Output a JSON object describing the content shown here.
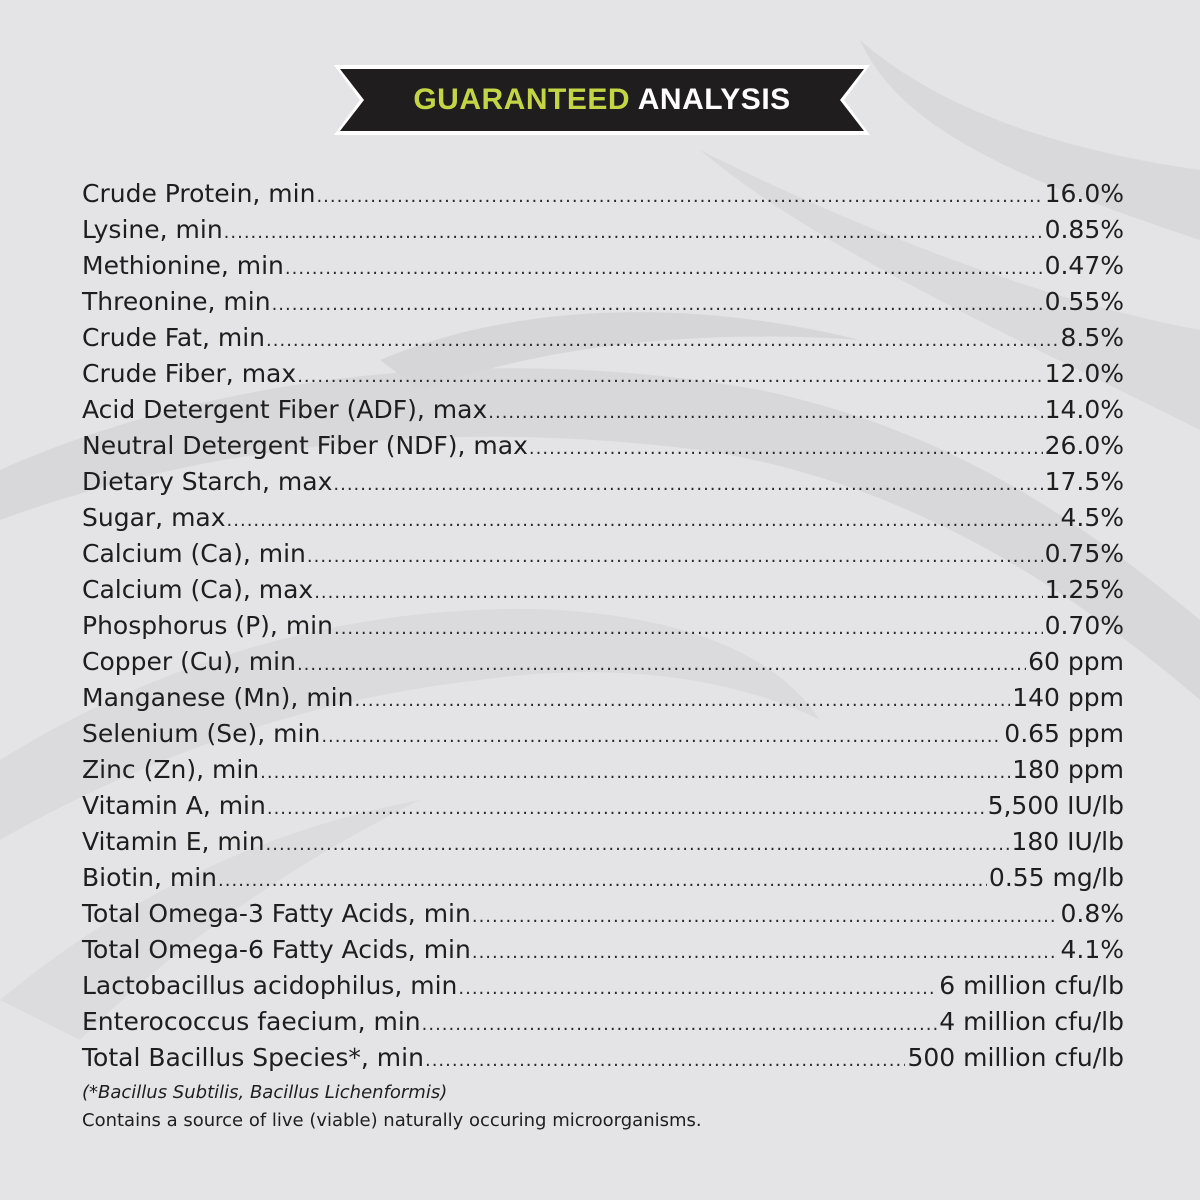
{
  "colors": {
    "background": "#e4e4e6",
    "banner_fill": "#1f1d1e",
    "accent": "#c3d545",
    "text": "#1e1e1e"
  },
  "banner": {
    "accent_word": "GUARANTEED",
    "main_word": "ANALYSIS"
  },
  "analysis": [
    {
      "label": "Crude Protein, min",
      "value": "16.0%"
    },
    {
      "label": "Lysine, min",
      "value": "0.85%"
    },
    {
      "label": "Methionine, min",
      "value": "0.47%"
    },
    {
      "label": "Threonine, min",
      "value": "0.55%"
    },
    {
      "label": "Crude Fat, min",
      "value": "8.5%"
    },
    {
      "label": "Crude Fiber, max",
      "value": "12.0%"
    },
    {
      "label": "Acid Detergent Fiber (ADF), max",
      "value": "14.0%"
    },
    {
      "label": "Neutral Detergent Fiber (NDF), max",
      "value": "26.0%"
    },
    {
      "label": "Dietary Starch, max",
      "value": "17.5%"
    },
    {
      "label": "Sugar, max",
      "value": "4.5%"
    },
    {
      "label": "Calcium (Ca), min",
      "value": "0.75%"
    },
    {
      "label": "Calcium (Ca), max",
      "value": "1.25%"
    },
    {
      "label": "Phosphorus (P), min",
      "value": "0.70%"
    },
    {
      "label": "Copper (Cu), min",
      "value": "60 ppm"
    },
    {
      "label": "Manganese (Mn), min",
      "value": "140 ppm"
    },
    {
      "label": "Selenium (Se), min",
      "value": "0.65 ppm"
    },
    {
      "label": "Zinc (Zn), min",
      "value": "180 ppm"
    },
    {
      "label": "Vitamin A, min",
      "value": "5,500 IU/lb"
    },
    {
      "label": "Vitamin E, min",
      "value": "180 IU/lb"
    },
    {
      "label": "Biotin, min",
      "value": "0.55 mg/lb"
    },
    {
      "label": "Total Omega-3 Fatty Acids, min",
      "value": "0.8%"
    },
    {
      "label": "Total Omega-6 Fatty Acids, min",
      "value": "4.1%"
    },
    {
      "label": "Lactobacillus acidophilus, min",
      "value": "6 million cfu/lb"
    },
    {
      "label": "Enterococcus faecium, min",
      "value": "4 million cfu/lb"
    },
    {
      "label": "Total Bacillus Species*, min",
      "value": "500 million cfu/lb"
    }
  ],
  "footnote": "(*Bacillus Subtilis, Bacillus Lichenformis)",
  "note": "Contains a source of live (viable) naturally occuring microorganisms."
}
